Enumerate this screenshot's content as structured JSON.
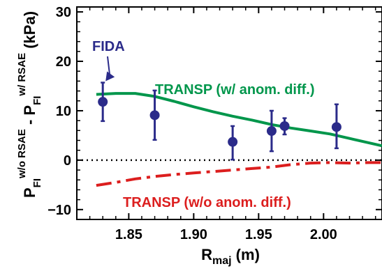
{
  "chart_data": {
    "type": "line",
    "xlabel": {
      "main": "R",
      "sub": "maj",
      "unit": " (m)"
    },
    "ylabel": {
      "p1": "P",
      "p1_sub": "FI",
      "p1_sup": "w/o RSAE",
      "minus": " - ",
      "p2": "P",
      "p2_sub": "FI",
      "p2_sup": "w/ RSAE",
      "unit": " (kPa)"
    },
    "xlim": [
      1.81,
      2.045
    ],
    "ylim": [
      -12,
      31
    ],
    "xticks": [
      1.85,
      1.9,
      1.95,
      2.0
    ],
    "xtick_labels": [
      "1.85",
      "1.90",
      "1.95",
      "2.00"
    ],
    "yticks": [
      -10,
      0,
      10,
      20,
      30
    ],
    "ytick_labels": [
      "−10",
      "0",
      "10",
      "20",
      "30"
    ],
    "zero_line": {
      "y": 0,
      "style": "dotted"
    },
    "grid": false,
    "series": [
      {
        "name": "TRANSP (w/ anom. diff.)",
        "kind": "line",
        "color": "#00964b",
        "x": [
          1.825,
          1.84,
          1.855,
          1.87,
          1.885,
          1.9,
          1.915,
          1.93,
          1.945,
          1.96,
          1.975,
          1.99,
          2.005,
          2.02,
          2.035,
          2.045
        ],
        "y": [
          13.3,
          13.5,
          13.5,
          12.9,
          11.9,
          10.8,
          9.8,
          8.9,
          8.1,
          7.2,
          6.5,
          5.9,
          5.3,
          4.4,
          3.5,
          2.9
        ]
      },
      {
        "name": "TRANSP (w/o anom. diff.)",
        "kind": "line",
        "style": "dashdot",
        "color": "#dc1e1e",
        "x": [
          1.825,
          1.84,
          1.855,
          1.87,
          1.885,
          1.9,
          1.915,
          1.93,
          1.945,
          1.96,
          1.975,
          1.99,
          2.005,
          2.02,
          2.035,
          2.045
        ],
        "y": [
          -5.1,
          -4.5,
          -3.8,
          -3.3,
          -2.9,
          -2.6,
          -2.3,
          -2.0,
          -1.7,
          -1.4,
          -0.9,
          -0.6,
          -0.5,
          -0.6,
          -0.5,
          -0.5
        ]
      },
      {
        "name": "FIDA",
        "kind": "errorbar",
        "color": "#2b2b8a",
        "x": [
          1.83,
          1.87,
          1.93,
          1.96,
          1.97,
          2.01
        ],
        "y": [
          11.8,
          9.1,
          3.7,
          5.9,
          6.9,
          6.7
        ],
        "yerr_low": [
          3.9,
          5.0,
          3.6,
          4.1,
          1.7,
          4.3
        ],
        "yerr_high": [
          3.9,
          5.0,
          3.2,
          4.1,
          1.6,
          4.6
        ]
      }
    ],
    "annotations": [
      {
        "text": "FIDA",
        "color": "#2b2b8a",
        "arrow_to_series": "FIDA",
        "arrow_to_index": 0
      },
      {
        "text": "TRANSP (w/ anom. diff.)",
        "color": "#00964b"
      },
      {
        "text": "TRANSP (w/o anom. diff.)",
        "color": "#dc1e1e"
      }
    ]
  }
}
